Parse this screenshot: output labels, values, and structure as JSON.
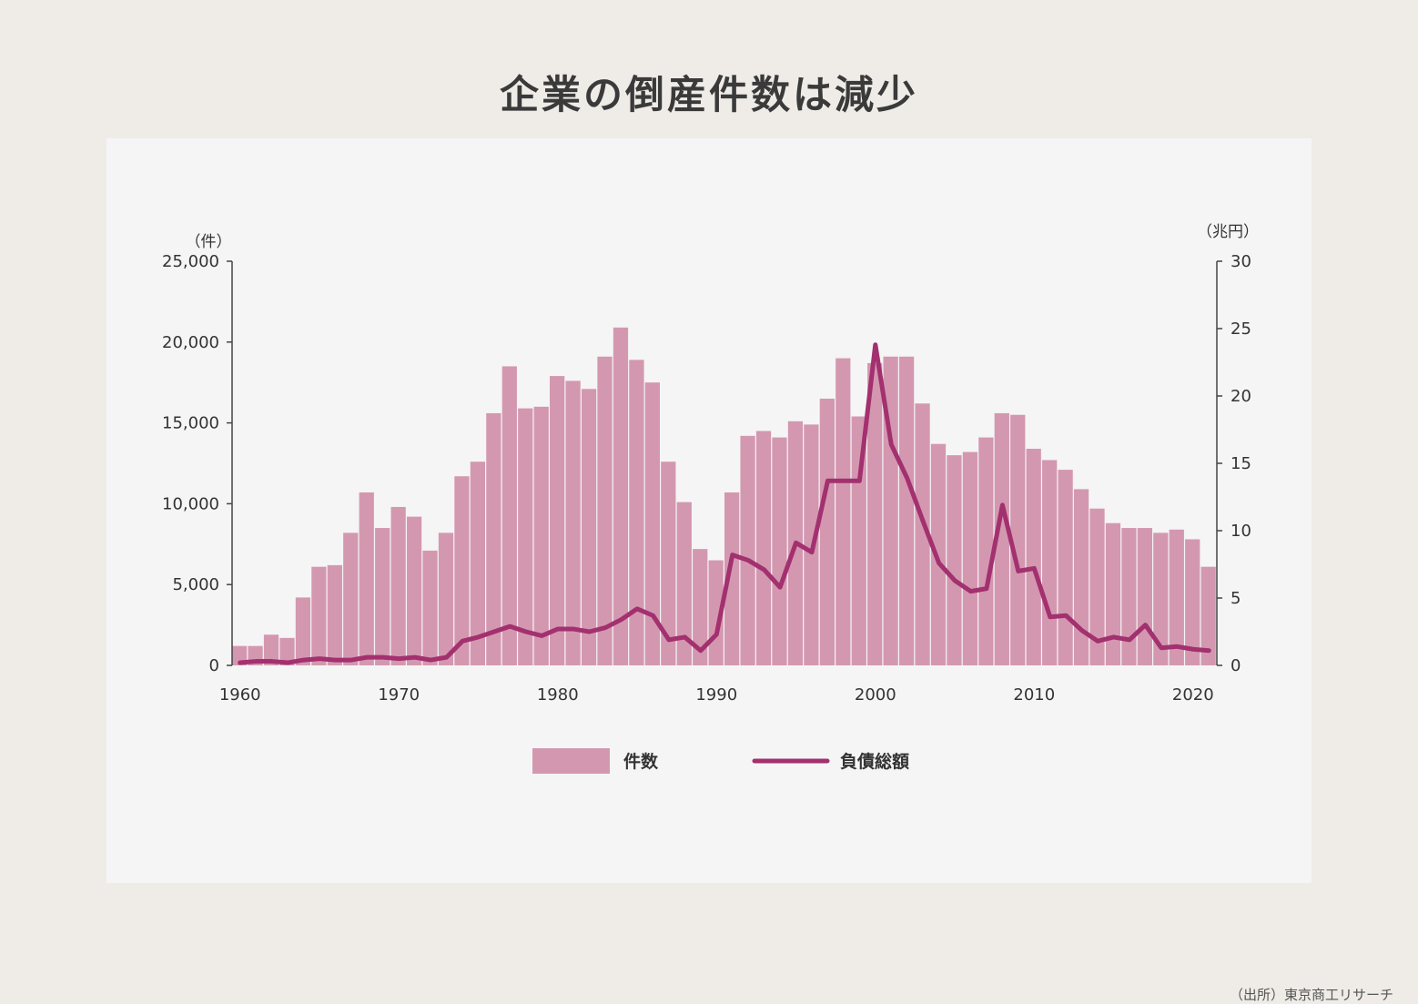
{
  "title": "企業の倒産件数は減少",
  "source": "（出所）東京商工リサーチ",
  "colors": {
    "page_background": "#efece8",
    "panel_background": "#f5f5f5",
    "bar": "#d398b0",
    "line": "#a3306f",
    "axis": "#444444",
    "text": "#333333"
  },
  "chart_data": {
    "type": "bar+line",
    "title": "企業の倒産件数は減少",
    "x": [
      1960,
      1961,
      1962,
      1963,
      1964,
      1965,
      1966,
      1967,
      1968,
      1969,
      1970,
      1971,
      1972,
      1973,
      1974,
      1975,
      1976,
      1977,
      1978,
      1979,
      1980,
      1981,
      1982,
      1983,
      1984,
      1985,
      1986,
      1987,
      1988,
      1989,
      1990,
      1991,
      1992,
      1993,
      1994,
      1995,
      1996,
      1997,
      1998,
      1999,
      2000,
      2001,
      2002,
      2003,
      2004,
      2005,
      2006,
      2007,
      2008,
      2009,
      2010,
      2011,
      2012,
      2013,
      2014,
      2015,
      2016,
      2017,
      2018,
      2019,
      2020,
      2021
    ],
    "xticks": [
      "1960",
      "1970",
      "1980",
      "1990",
      "2000",
      "2010",
      "2020"
    ],
    "left_axis": {
      "unit": "（件）",
      "ticks": [
        "0",
        "5,000",
        "10,000",
        "15,000",
        "20,000",
        "25,000"
      ],
      "range": [
        0,
        25000
      ]
    },
    "right_axis": {
      "unit": "（兆円）",
      "ticks": [
        "0",
        "5",
        "10",
        "15",
        "20",
        "25",
        "30"
      ],
      "range": [
        0,
        30
      ]
    },
    "series": [
      {
        "name": "件数",
        "type": "bar",
        "axis": "left",
        "values": [
          1200,
          1200,
          1900,
          1700,
          4200,
          6100,
          6200,
          8200,
          10700,
          8500,
          9800,
          9200,
          7100,
          8200,
          11700,
          12600,
          15600,
          18500,
          15900,
          16000,
          17900,
          17600,
          17100,
          19100,
          20900,
          18900,
          17500,
          12600,
          10100,
          7200,
          6500,
          10700,
          14200,
          14500,
          14100,
          15100,
          14900,
          16500,
          19000,
          15400,
          18700,
          19100,
          19100,
          16200,
          13700,
          13000,
          13200,
          14100,
          15600,
          15500,
          13400,
          12700,
          12100,
          10900,
          9700,
          8800,
          8500,
          8500,
          8200,
          8400,
          7800,
          6100
        ]
      },
      {
        "name": "負債総額",
        "type": "line",
        "axis": "right",
        "values": [
          0.2,
          0.3,
          0.3,
          0.2,
          0.4,
          0.5,
          0.4,
          0.4,
          0.6,
          0.6,
          0.5,
          0.6,
          0.4,
          0.6,
          1.8,
          2.1,
          2.5,
          2.9,
          2.5,
          2.2,
          2.7,
          2.7,
          2.5,
          2.8,
          3.4,
          4.2,
          3.7,
          1.9,
          2.1,
          1.1,
          2.3,
          8.2,
          7.8,
          7.1,
          5.8,
          9.1,
          8.4,
          13.7,
          13.7,
          13.7,
          23.8,
          16.4,
          13.9,
          10.7,
          7.6,
          6.3,
          5.5,
          5.7,
          11.9,
          7.0,
          7.2,
          3.6,
          3.7,
          2.6,
          1.8,
          2.1,
          1.9,
          3.0,
          1.3,
          1.4,
          1.2,
          1.1
        ]
      }
    ],
    "legend": [
      {
        "label": "件数",
        "kind": "bar"
      },
      {
        "label": "負債総額",
        "kind": "line"
      }
    ]
  }
}
